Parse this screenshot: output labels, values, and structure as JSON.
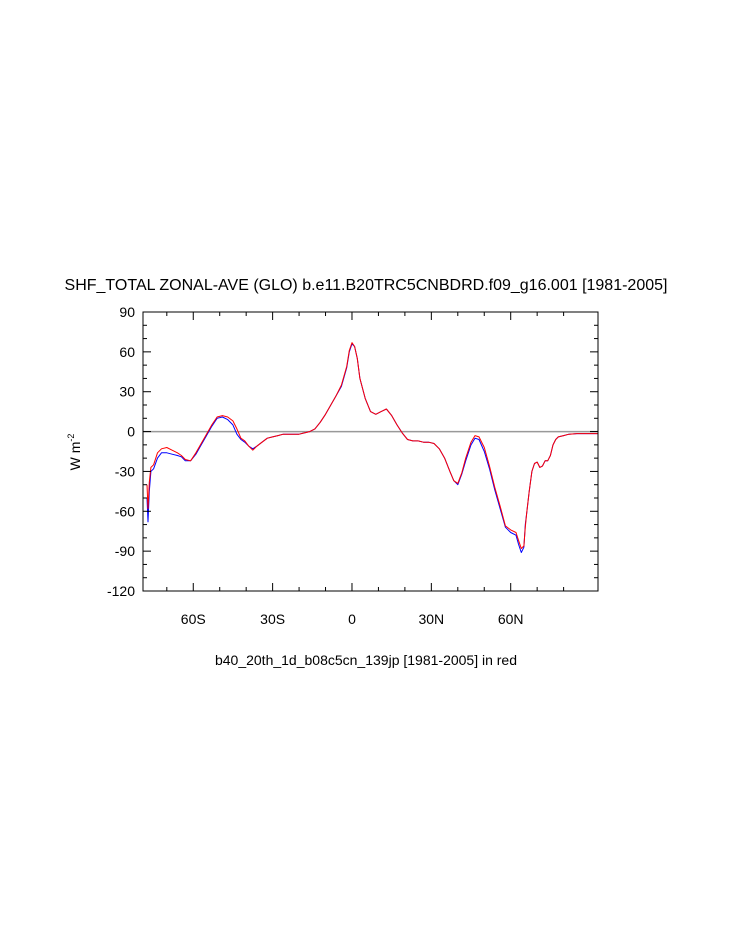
{
  "chart_data": {
    "type": "line",
    "title": "SHF_TOTAL ZONAL-AVE (GLO) b.e11.B20TRC5CNBDRD.f09_g16.001 [1981-2005]",
    "xlabel": "b40_20th_1d_b08c5cn_139jp [1981-2005] in red",
    "ylabel": "W m",
    "ylabel_superscript": "-2",
    "xlim": [
      -79,
      93
    ],
    "ylim": [
      -120,
      90
    ],
    "yticks": [
      90,
      60,
      30,
      0,
      -30,
      -60,
      -90,
      -120
    ],
    "ytick_labels": [
      "90",
      "60",
      "30",
      "0",
      "-30",
      "-60",
      "-90",
      "-120"
    ],
    "xticks": [
      -60,
      -30,
      0,
      30,
      60
    ],
    "xtick_labels": [
      "60S",
      "30S",
      "0",
      "30N",
      "60N"
    ],
    "reference_line": 0,
    "colors": {
      "series_blue": "#0000ff",
      "series_red": "#ff0000",
      "zero_line": "#999999",
      "frame": "#000000"
    },
    "series": [
      {
        "color": "blue",
        "x": [
          -77.5,
          -77.1,
          -76.6,
          -76,
          -75,
          -73.5,
          -72,
          -70,
          -68,
          -66,
          -64.5,
          -63,
          -61,
          -59,
          -57,
          -55,
          -53,
          -51,
          -49,
          -47,
          -45,
          -43.5,
          -42,
          -40.5,
          -39,
          -37.5,
          -36,
          -34,
          -32,
          -30,
          -28,
          -26,
          -24,
          -22,
          -20,
          -18,
          -16,
          -14,
          -12,
          -10,
          -8,
          -6,
          -4,
          -2,
          -1,
          0,
          1,
          2,
          3,
          5,
          7,
          9,
          11,
          13,
          15,
          17,
          19,
          21,
          23,
          25,
          27,
          29,
          31,
          33,
          35,
          37,
          38.5,
          40,
          41.5,
          43,
          45,
          46.5,
          48,
          50,
          52,
          54,
          56,
          58,
          60,
          62,
          63,
          64,
          65,
          65.5,
          66,
          67,
          68,
          69,
          70,
          71,
          72,
          73,
          74,
          75,
          76,
          77,
          78,
          80,
          82,
          85,
          88,
          91,
          93
        ],
        "y": [
          -50,
          -68,
          -45,
          -30,
          -28,
          -20,
          -16,
          -16,
          -17,
          -18,
          -19,
          -22,
          -22,
          -17,
          -10,
          -3,
          4,
          10,
          11,
          9,
          5,
          -2,
          -6,
          -8,
          -11,
          -13,
          -11,
          -8,
          -5,
          -4,
          -3,
          -2,
          -2,
          -2,
          -2,
          -1,
          0,
          2,
          7,
          13,
          20,
          27,
          34,
          48,
          60,
          66,
          64,
          55,
          40,
          25,
          15,
          13,
          15,
          17,
          12,
          5,
          -1,
          -6,
          -7,
          -7,
          -8,
          -8,
          -9,
          -13,
          -20,
          -30,
          -37,
          -40,
          -32,
          -22,
          -10,
          -5,
          -6,
          -15,
          -28,
          -44,
          -58,
          -72,
          -76,
          -78,
          -85,
          -91,
          -87,
          -70,
          -62,
          -45,
          -30,
          -24,
          -23,
          -27,
          -26,
          -22,
          -22,
          -18,
          -10,
          -6,
          -4,
          -3,
          -2,
          -1.5,
          -1.5,
          -1.5,
          -1.5
        ]
      },
      {
        "color": "red",
        "x": [
          -77.5,
          -77.1,
          -76.6,
          -76,
          -75,
          -73.5,
          -72,
          -70,
          -68,
          -66,
          -64.5,
          -63,
          -61,
          -59,
          -57,
          -55,
          -53,
          -51,
          -49,
          -47,
          -45,
          -43.5,
          -42,
          -40.5,
          -39,
          -37.5,
          -36,
          -34,
          -32,
          -30,
          -28,
          -26,
          -24,
          -22,
          -20,
          -18,
          -16,
          -14,
          -12,
          -10,
          -8,
          -6,
          -4,
          -2,
          -1,
          0,
          1,
          2,
          3,
          5,
          7,
          9,
          11,
          13,
          15,
          17,
          19,
          21,
          23,
          25,
          27,
          29,
          31,
          33,
          35,
          37,
          38.5,
          40,
          41.5,
          43,
          45,
          46.5,
          48,
          50,
          52,
          54,
          56,
          58,
          60,
          62,
          63,
          64,
          65,
          65.5,
          66,
          67,
          68,
          69,
          70,
          71,
          72,
          73,
          74,
          75,
          76,
          77,
          78,
          80,
          82,
          85,
          88,
          91,
          93
        ],
        "y": [
          -40,
          -58,
          -38,
          -27,
          -25,
          -16,
          -13,
          -12,
          -14,
          -16,
          -18,
          -21,
          -22,
          -16,
          -9,
          -2,
          5,
          11,
          12,
          11,
          8,
          2,
          -5,
          -7,
          -11,
          -14,
          -11,
          -8,
          -5,
          -4,
          -3,
          -2,
          -2,
          -2,
          -2,
          -1,
          0,
          2,
          7,
          13,
          20,
          27,
          35,
          49,
          61,
          67,
          64,
          55,
          40,
          25,
          15,
          13,
          15,
          17,
          12,
          5,
          -1,
          -6,
          -7,
          -7,
          -8,
          -8,
          -9,
          -13,
          -20,
          -30,
          -37,
          -39,
          -31,
          -20,
          -8,
          -3,
          -4,
          -12,
          -26,
          -42,
          -56,
          -71,
          -74,
          -76,
          -82,
          -88,
          -86,
          -72,
          -62,
          -45,
          -30,
          -24,
          -23,
          -27,
          -26,
          -22,
          -22,
          -18,
          -10,
          -6,
          -4,
          -3,
          -2,
          -1.5,
          -1.5,
          -1.5,
          -1.5
        ]
      }
    ]
  }
}
